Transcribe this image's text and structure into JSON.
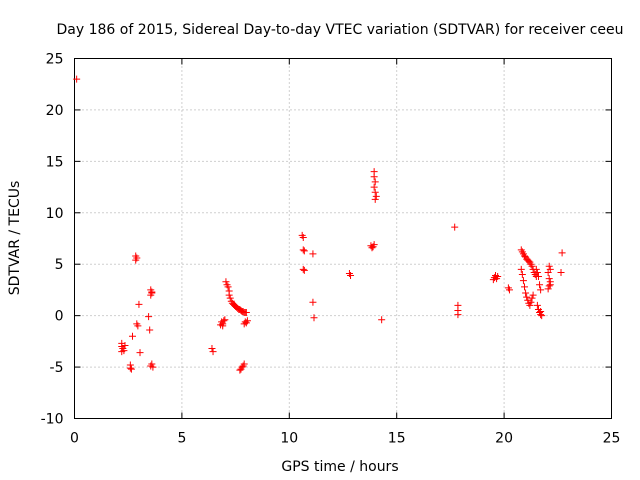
{
  "chart_data": {
    "type": "scatter",
    "title": "Day 186 of 2015, Sidereal Day-to-day VTEC variation (SDTVAR) for receiver ceeu",
    "xlabel": "GPS time / hours",
    "ylabel": "SDTVAR / TECUs",
    "xlim": [
      0,
      25
    ],
    "ylim": [
      -10,
      25
    ],
    "xticks": [
      0,
      5,
      10,
      15,
      20,
      25
    ],
    "yticks": [
      -10,
      -5,
      0,
      5,
      10,
      15,
      20,
      25
    ],
    "grid": true,
    "marker": "+",
    "color": "#ff0000",
    "points": [
      [
        0.1,
        23.0
      ],
      [
        2.2,
        -2.7
      ],
      [
        2.2,
        -3.0
      ],
      [
        2.25,
        -3.2
      ],
      [
        2.3,
        -3.4
      ],
      [
        2.2,
        -3.5
      ],
      [
        2.35,
        -2.9
      ],
      [
        2.6,
        -4.8
      ],
      [
        2.6,
        -5.1
      ],
      [
        2.65,
        -5.2
      ],
      [
        2.7,
        -2.0
      ],
      [
        2.85,
        5.4
      ],
      [
        2.85,
        5.8
      ],
      [
        2.9,
        5.6
      ],
      [
        2.9,
        -0.8
      ],
      [
        2.95,
        -1.0
      ],
      [
        3.0,
        1.1
      ],
      [
        3.05,
        -3.6
      ],
      [
        3.45,
        -0.1
      ],
      [
        3.5,
        -1.4
      ],
      [
        3.55,
        2.0
      ],
      [
        3.6,
        2.3
      ],
      [
        3.55,
        2.5
      ],
      [
        3.6,
        2.2
      ],
      [
        3.6,
        -4.7
      ],
      [
        3.55,
        -4.9
      ],
      [
        3.65,
        -5.0
      ],
      [
        6.4,
        -3.2
      ],
      [
        6.45,
        -3.5
      ],
      [
        6.8,
        -0.9
      ],
      [
        6.85,
        -0.6
      ],
      [
        6.9,
        -0.8
      ],
      [
        6.95,
        -0.5
      ],
      [
        7.0,
        -0.4
      ],
      [
        6.9,
        -1.0
      ],
      [
        7.05,
        3.3
      ],
      [
        7.1,
        3.0
      ],
      [
        7.15,
        2.8
      ],
      [
        7.2,
        2.4
      ],
      [
        7.2,
        2.0
      ],
      [
        7.25,
        1.7
      ],
      [
        7.3,
        1.4
      ],
      [
        7.35,
        1.2
      ],
      [
        7.4,
        1.1
      ],
      [
        7.45,
        1.0
      ],
      [
        7.5,
        0.9
      ],
      [
        7.55,
        0.8
      ],
      [
        7.6,
        0.7
      ],
      [
        7.65,
        0.6
      ],
      [
        7.7,
        0.6
      ],
      [
        7.75,
        0.5
      ],
      [
        7.8,
        0.4
      ],
      [
        7.85,
        0.4
      ],
      [
        7.9,
        0.3
      ],
      [
        7.95,
        0.3
      ],
      [
        8.0,
        0.3
      ],
      [
        7.8,
        -5.0
      ],
      [
        7.75,
        -5.2
      ],
      [
        7.7,
        -5.3
      ],
      [
        7.85,
        -4.9
      ],
      [
        7.9,
        -4.7
      ],
      [
        7.9,
        -0.8
      ],
      [
        7.95,
        -0.6
      ],
      [
        8.0,
        -0.7
      ],
      [
        8.05,
        -0.5
      ],
      [
        10.6,
        7.8
      ],
      [
        10.65,
        7.6
      ],
      [
        10.65,
        6.4
      ],
      [
        10.7,
        6.3
      ],
      [
        10.65,
        4.5
      ],
      [
        10.7,
        4.4
      ],
      [
        11.1,
        6.0
      ],
      [
        11.1,
        1.3
      ],
      [
        11.15,
        -0.2
      ],
      [
        12.8,
        4.1
      ],
      [
        12.85,
        3.9
      ],
      [
        13.8,
        6.8
      ],
      [
        13.9,
        6.7
      ],
      [
        13.85,
        6.6
      ],
      [
        13.95,
        6.9
      ],
      [
        13.95,
        14.0
      ],
      [
        13.95,
        13.5
      ],
      [
        14.0,
        13.0
      ],
      [
        13.95,
        12.5
      ],
      [
        14.0,
        12.0
      ],
      [
        14.05,
        11.6
      ],
      [
        14.0,
        11.3
      ],
      [
        14.3,
        -0.4
      ],
      [
        17.7,
        8.6
      ],
      [
        17.85,
        1.0
      ],
      [
        17.85,
        0.5
      ],
      [
        17.85,
        0.1
      ],
      [
        19.5,
        3.5
      ],
      [
        19.55,
        3.7
      ],
      [
        19.6,
        3.9
      ],
      [
        19.65,
        3.6
      ],
      [
        19.7,
        3.8
      ],
      [
        20.2,
        2.7
      ],
      [
        20.25,
        2.5
      ],
      [
        20.8,
        6.4
      ],
      [
        20.85,
        6.2
      ],
      [
        20.9,
        6.0
      ],
      [
        20.95,
        5.8
      ],
      [
        21.0,
        5.7
      ],
      [
        21.05,
        5.5
      ],
      [
        21.1,
        5.4
      ],
      [
        21.15,
        5.3
      ],
      [
        21.2,
        5.2
      ],
      [
        21.25,
        5.0
      ],
      [
        21.3,
        4.8
      ],
      [
        21.35,
        4.5
      ],
      [
        21.4,
        4.2
      ],
      [
        21.45,
        4.0
      ],
      [
        21.5,
        3.8
      ],
      [
        20.8,
        4.5
      ],
      [
        20.85,
        4.0
      ],
      [
        20.9,
        3.4
      ],
      [
        20.95,
        2.8
      ],
      [
        21.0,
        2.2
      ],
      [
        21.05,
        1.8
      ],
      [
        21.1,
        1.5
      ],
      [
        21.15,
        1.2
      ],
      [
        21.2,
        1.0
      ],
      [
        21.25,
        1.3
      ],
      [
        21.3,
        1.7
      ],
      [
        21.35,
        2.0
      ],
      [
        21.5,
        4.5
      ],
      [
        21.55,
        4.2
      ],
      [
        21.6,
        3.8
      ],
      [
        21.65,
        3.0
      ],
      [
        21.7,
        2.5
      ],
      [
        21.55,
        1.0
      ],
      [
        21.6,
        0.6
      ],
      [
        21.65,
        0.3
      ],
      [
        21.7,
        0.1
      ],
      [
        21.75,
        0.0
      ],
      [
        21.7,
        0.4
      ],
      [
        22.1,
        4.8
      ],
      [
        22.15,
        4.5
      ],
      [
        22.05,
        4.2
      ],
      [
        22.1,
        3.6
      ],
      [
        22.15,
        3.3
      ],
      [
        22.1,
        2.9
      ],
      [
        22.05,
        2.6
      ],
      [
        22.15,
        3.0
      ],
      [
        22.7,
        6.1
      ],
      [
        22.65,
        4.2
      ]
    ]
  }
}
